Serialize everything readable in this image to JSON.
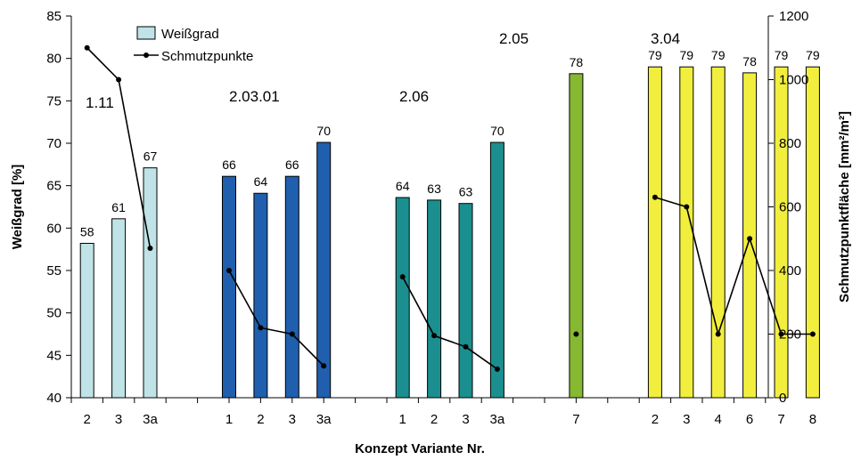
{
  "chart_data": {
    "type": "bar",
    "xlabel": "Konzept Variante Nr.",
    "ylabel": "Weißgrad [%]",
    "y2label": "Schmutzpunktfläche [mm²/m²]",
    "ylim": [
      40,
      85
    ],
    "yticks": [
      40,
      45,
      50,
      55,
      60,
      65,
      70,
      75,
      80,
      85
    ],
    "y2lim": [
      0,
      1200
    ],
    "y2ticks": [
      0,
      200,
      400,
      600,
      800,
      1000,
      1200
    ],
    "legend": {
      "position": "top-left",
      "items": [
        {
          "label": "Weißgrad",
          "kind": "bar",
          "color": "#bfe3e6"
        },
        {
          "label": "Schmutzpunkte",
          "kind": "line",
          "color": "#000000"
        }
      ]
    },
    "groups": [
      {
        "name": "1.11",
        "color": "#bfe3e6",
        "categories": [
          "2",
          "3",
          "3a"
        ],
        "weissgrad": [
          58.2,
          61.1,
          67.1
        ],
        "labels": [
          "58",
          "61",
          "67"
        ],
        "schmutzpunkte": [
          1100,
          1000,
          470
        ]
      },
      {
        "name": "2.03.01",
        "color": "#1f5fae",
        "categories": [
          "1",
          "2",
          "3",
          "3a"
        ],
        "weissgrad": [
          66.1,
          64.1,
          66.1,
          70.1
        ],
        "labels": [
          "66",
          "64",
          "66",
          "70"
        ],
        "schmutzpunkte": [
          400,
          220,
          200,
          100
        ]
      },
      {
        "name": "2.06",
        "color": "#1b8f8f",
        "categories": [
          "1",
          "2",
          "3",
          "3a"
        ],
        "weissgrad": [
          63.6,
          63.3,
          62.9,
          70.1
        ],
        "labels": [
          "64",
          "63",
          "63",
          "70"
        ],
        "schmutzpunkte": [
          380,
          195,
          160,
          90
        ]
      },
      {
        "name": "2.05",
        "color": "#86b832",
        "categories": [
          "7"
        ],
        "weissgrad": [
          78.2
        ],
        "labels": [
          "78"
        ],
        "schmutzpunkte": [
          200
        ]
      },
      {
        "name": "3.04",
        "color": "#f2ee3e",
        "categories": [
          "2",
          "3",
          "4",
          "6",
          "7",
          "8"
        ],
        "weissgrad": [
          79.0,
          79.0,
          79.0,
          78.3,
          79.0,
          79.0
        ],
        "labels": [
          "79",
          "79",
          "79",
          "78",
          "79",
          "79"
        ],
        "schmutzpunkte": [
          630,
          600,
          200,
          500,
          200,
          200
        ]
      }
    ]
  }
}
